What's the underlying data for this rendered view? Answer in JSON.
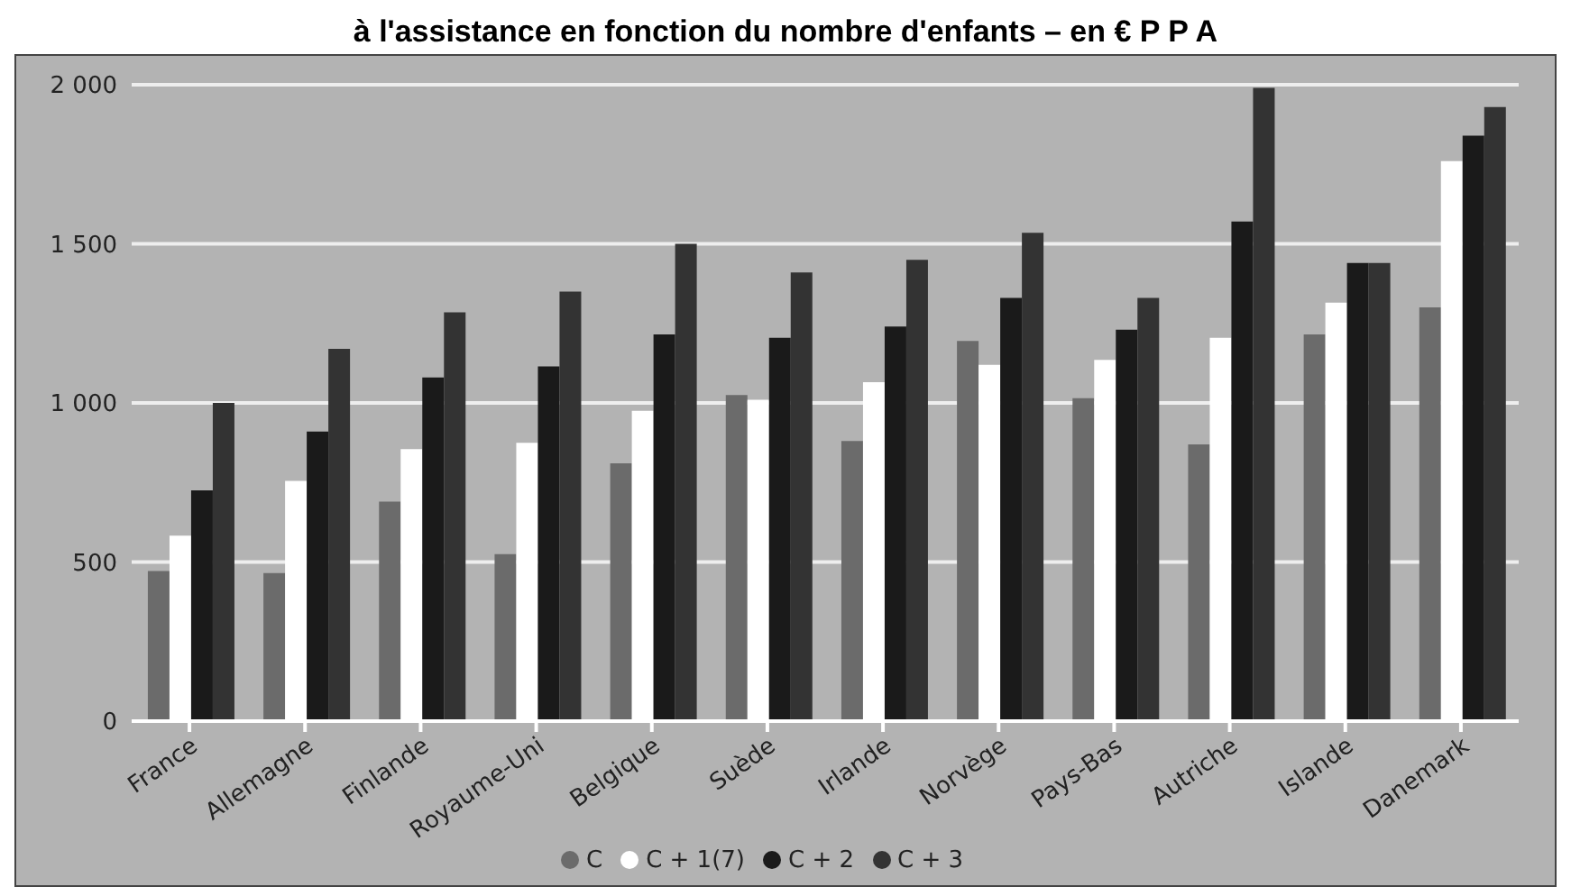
{
  "chart_data": {
    "type": "bar",
    "title": "à l'assistance en fonction du nombre d'enfants – en € P P A",
    "categories": [
      "France",
      "Allemagne",
      "Finlande",
      "Royaume-Uni",
      "Belgique",
      "Suède",
      "Irlande",
      "Norvège",
      "Pays-Bas",
      "Autriche",
      "Islande",
      "Danemark"
    ],
    "series": [
      {
        "name": "C",
        "color": "#6b6b6b",
        "values": [
          472,
          465,
          690,
          525,
          810,
          1025,
          880,
          1195,
          1015,
          870,
          1215,
          1300
        ]
      },
      {
        "name": "C + 1(7)",
        "color": "#ffffff",
        "values": [
          583,
          755,
          855,
          875,
          975,
          1010,
          1065,
          1120,
          1135,
          1205,
          1315,
          1760
        ]
      },
      {
        "name": "C + 2",
        "color": "#1a1a1a",
        "values": [
          725,
          910,
          1080,
          1115,
          1215,
          1205,
          1240,
          1330,
          1230,
          1570,
          1440,
          1840
        ]
      },
      {
        "name": "C + 3",
        "color": "#333333",
        "values": [
          1000,
          1170,
          1285,
          1350,
          1500,
          1410,
          1450,
          1535,
          1330,
          1990,
          1440,
          1930
        ]
      }
    ],
    "ylim": [
      0,
      2000
    ],
    "yticks": [
      {
        "value": 0,
        "label": "0"
      },
      {
        "value": 500,
        "label": "500"
      },
      {
        "value": 1000,
        "label": "1 000"
      },
      {
        "value": 1500,
        "label": "1 500"
      },
      {
        "value": 2000,
        "label": "2 000"
      }
    ],
    "grid": "y",
    "legend": "bottom"
  }
}
